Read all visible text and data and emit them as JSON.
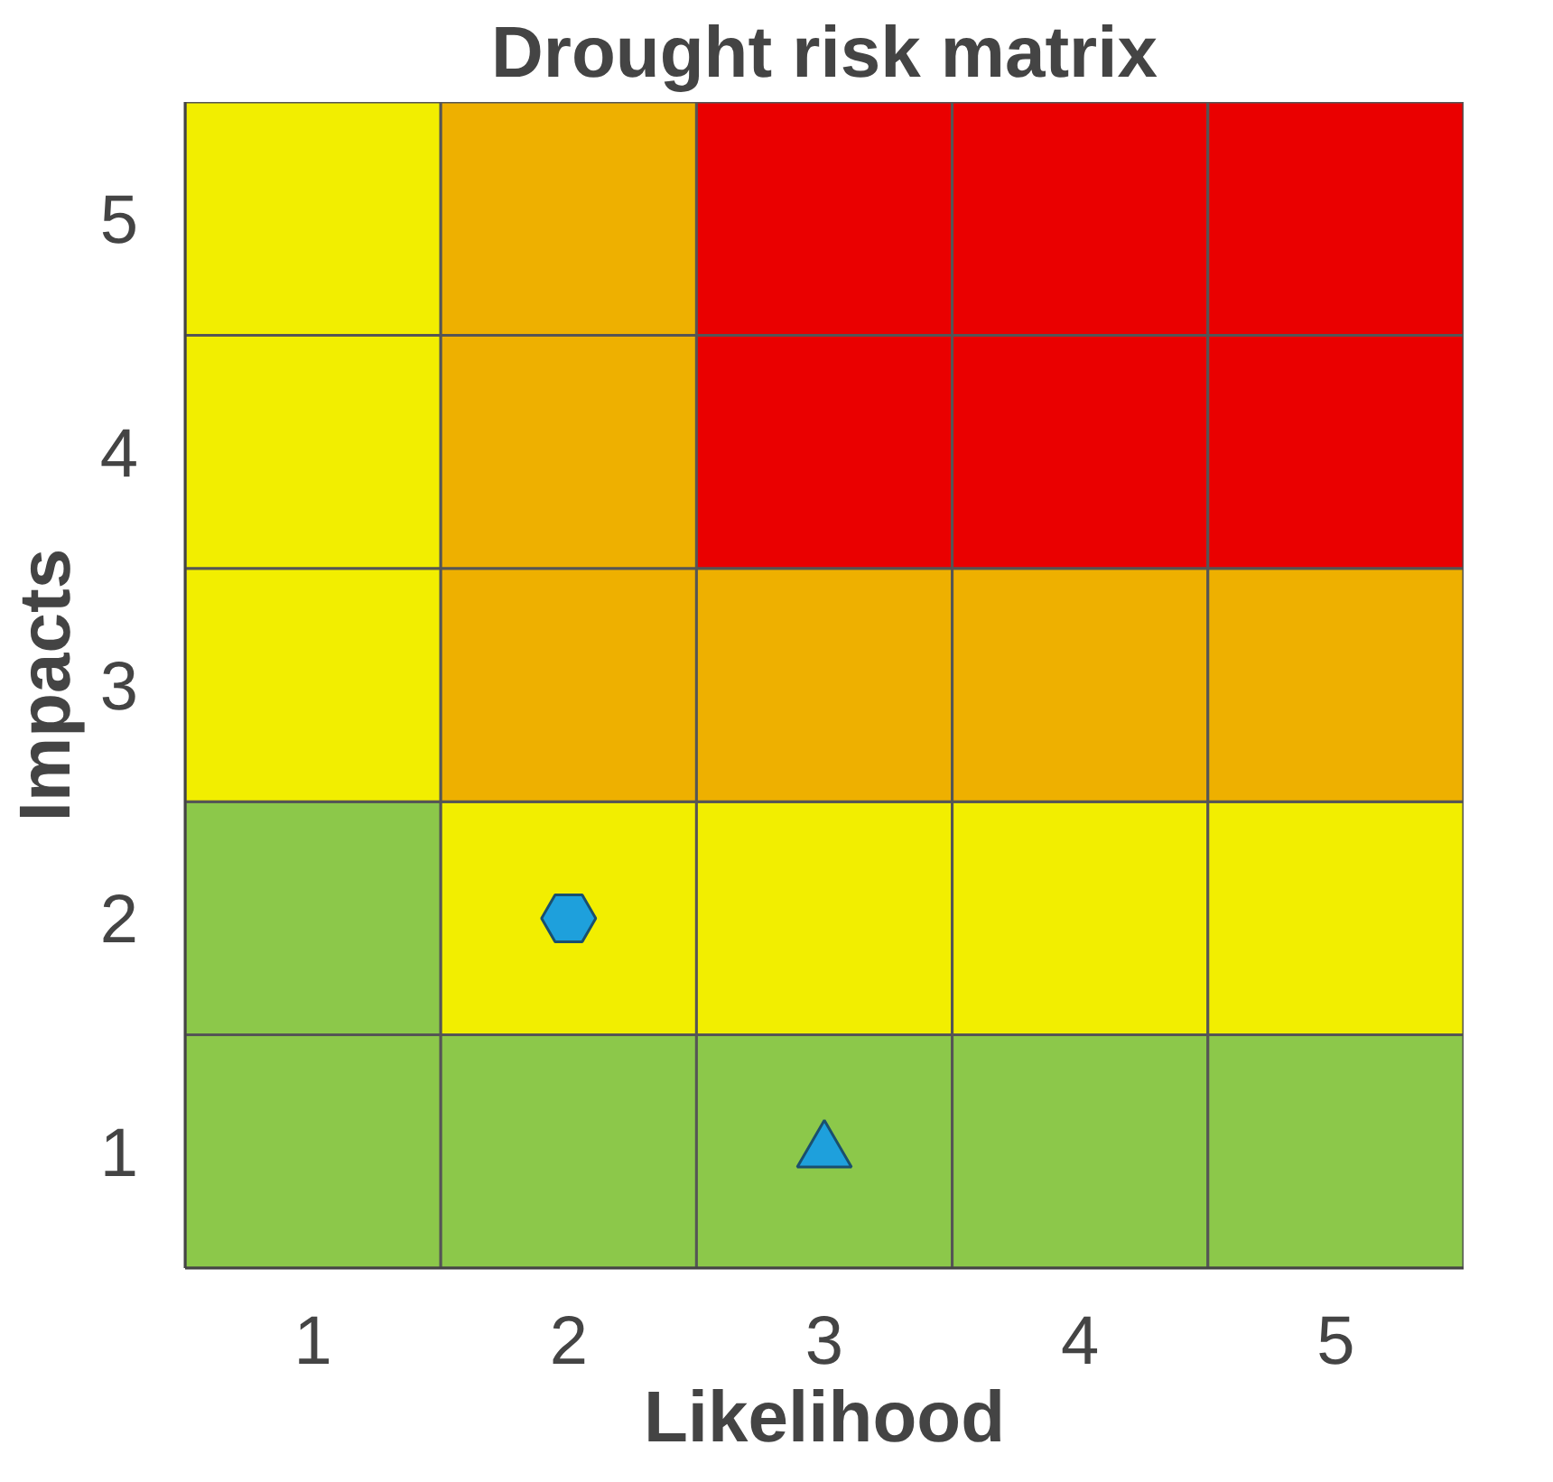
{
  "chart_data": {
    "type": "bar",
    "stacked": true,
    "title": "Drought risk matrix",
    "xlabel": "Likelihood",
    "ylabel": "Impacts",
    "categories": [
      "1",
      "2",
      "3",
      "4",
      "5"
    ],
    "ylim": [
      0,
      5
    ],
    "yticks": [
      {
        "value": 0.5,
        "label": "1"
      },
      {
        "value": 1.5,
        "label": "2"
      },
      {
        "value": 2.5,
        "label": "3"
      },
      {
        "value": 3.5,
        "label": "4"
      },
      {
        "value": 4.5,
        "label": "5"
      }
    ],
    "series": [
      {
        "colors": [
          "#8cc84a",
          "#8cc84a",
          "#8cc84a",
          "#8cc84a",
          "#8cc84a"
        ],
        "values": [
          1,
          1,
          1,
          1,
          1
        ]
      },
      {
        "colors": [
          "#8cc84a",
          "#f2ee00",
          "#f2ee00",
          "#f2ee00",
          "#f2ee00"
        ],
        "values": [
          1,
          1,
          1,
          1,
          1
        ]
      },
      {
        "colors": [
          "#f2ee00",
          "#eeb000",
          "#eeb000",
          "#eeb000",
          "#eeb000"
        ],
        "values": [
          1,
          1,
          1,
          1,
          1
        ]
      },
      {
        "colors": [
          "#f2ee00",
          "#eeb000",
          "#ea0000",
          "#ea0000",
          "#ea0000"
        ],
        "values": [
          1,
          1,
          1,
          1,
          1
        ]
      },
      {
        "colors": [
          "#f2ee00",
          "#eeb000",
          "#ea0000",
          "#ea0000",
          "#ea0000"
        ],
        "values": [
          1,
          1,
          1,
          1,
          1
        ]
      },
      {
        "type": "scatter",
        "marker": "circle",
        "color": "#1ea0dc",
        "x": [
          "2"
        ],
        "values": [
          1.5
        ]
      },
      {
        "type": "scatter",
        "marker": "triangle",
        "color": "#1ea0dc",
        "x": [
          "3"
        ],
        "values": [
          0.5
        ]
      }
    ]
  }
}
